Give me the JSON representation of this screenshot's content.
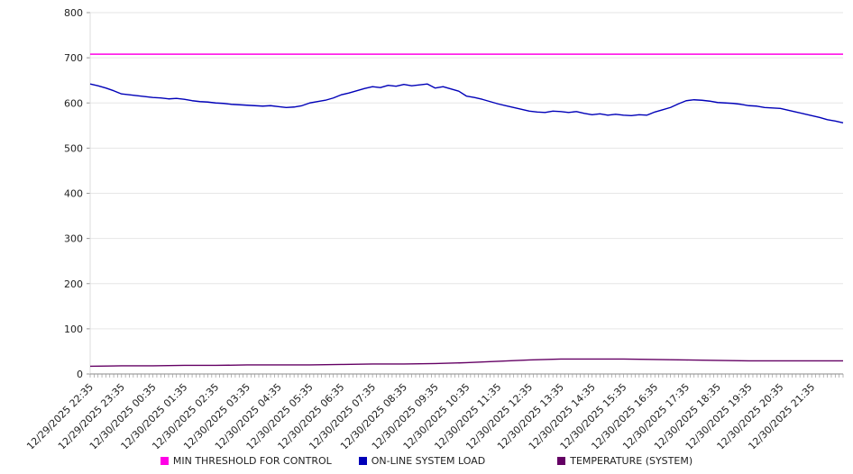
{
  "chart_data": {
    "type": "line",
    "title": "",
    "xlabel": "",
    "ylabel": "",
    "ylim": [
      0,
      800
    ],
    "y_ticks": [
      0,
      100,
      200,
      300,
      400,
      500,
      600,
      700,
      800
    ],
    "grid": true,
    "legend_position": "bottom",
    "x_labels": [
      "12/29/2025 22:35",
      "12/29/2025 23:35",
      "12/30/2025 00:35",
      "12/30/2025 01:35",
      "12/30/2025 02:35",
      "12/30/2025 03:35",
      "12/30/2025 04:35",
      "12/30/2025 05:35",
      "12/30/2025 06:35",
      "12/30/2025 07:35",
      "12/30/2025 08:35",
      "12/30/2025 09:35",
      "12/30/2025 10:35",
      "12/30/2025 11:35",
      "12/30/2025 12:35",
      "12/30/2025 13:35",
      "12/30/2025 14:35",
      "12/30/2025 15:35",
      "12/30/2025 16:35",
      "12/30/2025 17:35",
      "12/30/2025 18:35",
      "12/30/2025 19:35",
      "12/30/2025 20:35",
      "12/30/2025 21:35"
    ],
    "series": [
      {
        "name": "MIN THRESHOLD FOR CONTROL",
        "color": "#ff00e6",
        "values": [
          708,
          708
        ]
      },
      {
        "name": "ON-LINE SYSTEM LOAD",
        "color": "#0000b8",
        "values": [
          642,
          638,
          633,
          627,
          620,
          618,
          616,
          614,
          612,
          611,
          609,
          610,
          608,
          605,
          603,
          602,
          600,
          599,
          597,
          596,
          595,
          594,
          593,
          594,
          592,
          590,
          591,
          594,
          600,
          603,
          606,
          611,
          618,
          622,
          627,
          632,
          636,
          634,
          639,
          637,
          641,
          638,
          640,
          642,
          633,
          636,
          631,
          626,
          615,
          612,
          608,
          603,
          598,
          594,
          590,
          586,
          582,
          580,
          579,
          582,
          581,
          579,
          581,
          577,
          574,
          576,
          573,
          575,
          573,
          572,
          574,
          573,
          580,
          585,
          590,
          598,
          605,
          607,
          606,
          604,
          601,
          600,
          599,
          597,
          594,
          593,
          590,
          589,
          588,
          584,
          580,
          576,
          572,
          568,
          563,
          560,
          556
        ]
      },
      {
        "name": "TEMPERATURE (SYSTEM)",
        "color": "#640064",
        "values": [
          17,
          18,
          18,
          19,
          19,
          20,
          20,
          20,
          21,
          22,
          22,
          23,
          25,
          28,
          31,
          33,
          33,
          33,
          32,
          31,
          30,
          29,
          29,
          29,
          29
        ]
      }
    ]
  }
}
